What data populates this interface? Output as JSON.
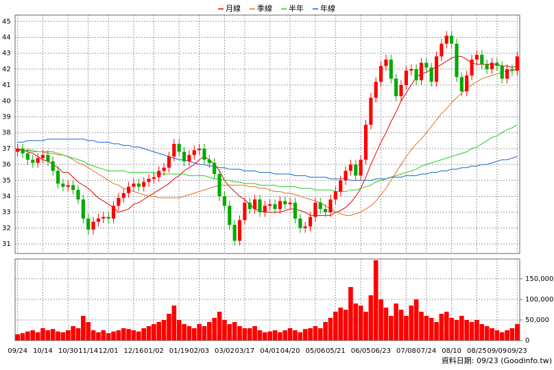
{
  "chart_data": {
    "type": "candlestick",
    "footnote": "資料日期: 09/23  (Goodinfo.tw)",
    "grid": true,
    "legend": "top",
    "up_color": "#ff0000",
    "down_color": "#00aa00",
    "ylim": [
      30.4,
      45.4
    ],
    "yticks": [
      31,
      32,
      33,
      34,
      35,
      36,
      37,
      38,
      39,
      40,
      41,
      42,
      43,
      44,
      45
    ],
    "categories": [
      "09/24",
      null,
      null,
      null,
      null,
      "10/14",
      null,
      null,
      null,
      null,
      "10/30",
      null,
      null,
      null,
      "11/14",
      null,
      null,
      null,
      "12/01",
      null,
      null,
      null,
      null,
      "12/16",
      null,
      null,
      null,
      "01/02",
      null,
      null,
      null,
      null,
      "01/19",
      null,
      null,
      null,
      "02/03",
      null,
      null,
      null,
      null,
      "03/02",
      null,
      null,
      null,
      "03/17",
      null,
      null,
      null,
      null,
      "04/01",
      null,
      null,
      null,
      "04/20",
      null,
      null,
      null,
      null,
      "05/06",
      null,
      null,
      null,
      "05/21",
      null,
      null,
      null,
      null,
      "06/05",
      null,
      null,
      null,
      "06/23",
      null,
      null,
      null,
      null,
      "07/08",
      null,
      null,
      null,
      "07/24",
      null,
      null,
      null,
      null,
      "08/10",
      null,
      null,
      null,
      null,
      "08/25",
      null,
      null,
      null,
      "09/09",
      null,
      null,
      null,
      "09/23"
    ],
    "candles": {
      "open": [
        36.8,
        37.0,
        36.7,
        36.3,
        36.1,
        36.4,
        36.6,
        36.2,
        35.6,
        34.8,
        34.6,
        34.7,
        34.4,
        33.8,
        32.6,
        31.9,
        32.4,
        32.6,
        32.7,
        32.6,
        33.4,
        33.9,
        34.2,
        34.6,
        34.8,
        34.6,
        34.9,
        35.1,
        35.2,
        35.6,
        35.8,
        36.5,
        37.3,
        36.8,
        36.2,
        36.6,
        36.9,
        37.0,
        36.3,
        36.1,
        35.4,
        34.0,
        33.4,
        32.2,
        31.2,
        32.5,
        33.6,
        33.2,
        33.8,
        33.0,
        33.4,
        33.5,
        33.2,
        33.7,
        33.5,
        33.6,
        32.6,
        32.0,
        32.1,
        32.7,
        33.6,
        33.2,
        33.0,
        33.8,
        34.3,
        35.0,
        35.6,
        36.0,
        35.3,
        36.3,
        38.5,
        40.2,
        41.2,
        42.2,
        42.6,
        41.4,
        40.3,
        41.0,
        41.9,
        42.0,
        41.3,
        42.4,
        42.1,
        41.2,
        42.8,
        43.6,
        44.1,
        43.6,
        41.5,
        40.6,
        41.6,
        42.6,
        42.9,
        42.3,
        42.0,
        42.4,
        42.2,
        41.4,
        42.0,
        41.9
      ],
      "high": [
        37.3,
        37.3,
        37.0,
        36.6,
        36.7,
        36.9,
        36.9,
        36.5,
        35.9,
        35.1,
        35.0,
        35.0,
        34.7,
        34.1,
        32.9,
        32.7,
        32.9,
        33.0,
        33.0,
        33.7,
        34.2,
        34.5,
        34.9,
        35.1,
        35.1,
        35.2,
        35.4,
        35.5,
        35.9,
        36.1,
        36.8,
        37.6,
        37.6,
        37.1,
        36.9,
        37.2,
        37.3,
        37.3,
        36.6,
        36.4,
        35.7,
        34.3,
        33.7,
        32.5,
        32.8,
        33.9,
        33.9,
        34.1,
        34.1,
        33.7,
        33.8,
        33.8,
        34.0,
        34.0,
        33.9,
        33.9,
        32.9,
        32.4,
        33.0,
        33.9,
        33.9,
        33.5,
        34.1,
        34.6,
        35.3,
        35.9,
        36.3,
        36.3,
        36.6,
        38.8,
        40.5,
        41.5,
        42.5,
        42.9,
        42.9,
        41.7,
        41.3,
        42.2,
        42.3,
        42.3,
        42.7,
        42.7,
        42.4,
        43.1,
        43.9,
        44.4,
        44.4,
        43.9,
        41.8,
        41.9,
        42.9,
        43.2,
        43.2,
        42.6,
        42.7,
        42.7,
        42.5,
        42.3,
        42.3,
        43.1
      ],
      "low": [
        36.5,
        36.4,
        36.0,
        35.8,
        35.8,
        36.1,
        35.9,
        35.3,
        34.5,
        34.3,
        34.3,
        34.1,
        33.5,
        32.3,
        31.6,
        31.6,
        32.1,
        32.3,
        32.3,
        32.3,
        33.1,
        33.6,
        33.9,
        34.3,
        34.3,
        34.3,
        34.6,
        34.8,
        34.9,
        35.3,
        35.5,
        36.2,
        36.5,
        35.9,
        35.9,
        36.3,
        36.6,
        36.0,
        35.8,
        35.1,
        33.7,
        33.1,
        31.9,
        30.9,
        30.9,
        32.2,
        32.9,
        32.9,
        32.7,
        32.7,
        33.1,
        32.9,
        32.9,
        33.2,
        33.2,
        32.3,
        31.7,
        31.7,
        31.8,
        32.4,
        32.9,
        32.7,
        32.7,
        33.5,
        34.0,
        34.7,
        35.3,
        35.0,
        35.0,
        36.0,
        38.2,
        39.9,
        40.9,
        41.9,
        41.1,
        40.0,
        40.0,
        40.7,
        41.6,
        41.0,
        41.0,
        41.8,
        40.9,
        40.9,
        42.5,
        43.3,
        43.3,
        41.2,
        40.3,
        40.3,
        41.3,
        42.3,
        42.0,
        41.7,
        41.7,
        41.9,
        41.1,
        41.1,
        41.6,
        41.6
      ],
      "close": [
        37.0,
        36.7,
        36.3,
        36.1,
        36.4,
        36.6,
        36.2,
        35.6,
        34.8,
        34.6,
        34.7,
        34.4,
        33.8,
        32.6,
        31.9,
        32.4,
        32.6,
        32.7,
        32.6,
        33.4,
        33.9,
        34.2,
        34.6,
        34.8,
        34.6,
        34.9,
        35.1,
        35.2,
        35.6,
        35.8,
        36.5,
        37.3,
        36.8,
        36.2,
        36.6,
        36.9,
        37.0,
        36.3,
        36.1,
        35.4,
        34.0,
        33.4,
        32.2,
        31.2,
        32.5,
        33.6,
        33.2,
        33.8,
        33.0,
        33.4,
        33.5,
        33.2,
        33.7,
        33.5,
        33.6,
        32.6,
        32.0,
        32.1,
        32.7,
        33.6,
        33.2,
        33.0,
        33.8,
        34.3,
        35.0,
        35.6,
        36.0,
        35.3,
        36.3,
        38.5,
        40.2,
        41.2,
        42.2,
        42.6,
        41.4,
        40.3,
        41.0,
        41.9,
        42.0,
        41.3,
        42.4,
        42.1,
        41.2,
        42.8,
        43.6,
        44.1,
        43.6,
        41.5,
        40.6,
        41.6,
        42.6,
        42.9,
        42.3,
        42.0,
        42.4,
        42.2,
        41.4,
        42.0,
        41.9,
        42.8
      ]
    },
    "series": [
      {
        "name": "月線",
        "color": "#dd0000",
        "values": [
          37.0,
          36.9,
          36.8,
          36.7,
          36.5,
          36.3,
          36.2,
          36.0,
          35.8,
          35.5,
          35.5,
          35.2,
          34.9,
          34.7,
          34.5,
          34.2,
          33.9,
          33.7,
          33.5,
          33.3,
          33.0,
          33.1,
          33.2,
          33.5,
          33.6,
          33.8,
          34.0,
          34.2,
          34.4,
          34.6,
          34.8,
          35.1,
          35.3,
          35.6,
          35.8,
          36.0,
          36.3,
          36.5,
          36.3,
          36.0,
          35.6,
          35.0,
          34.6,
          34.3,
          34.0,
          33.8,
          33.5,
          33.2,
          33.1,
          33.0,
          33.0,
          33.0,
          33.0,
          33.1,
          33.2,
          33.2,
          33.1,
          33.0,
          32.8,
          32.8,
          32.8,
          32.8,
          32.8,
          33.0,
          33.1,
          33.3,
          33.6,
          34.0,
          34.5,
          35.2,
          36.0,
          36.7,
          37.4,
          38.0,
          38.7,
          39.3,
          40.0,
          40.5,
          41.0,
          41.5,
          41.7,
          41.8,
          42.0,
          42.1,
          42.3,
          42.5,
          42.7,
          42.8,
          42.8,
          42.6,
          42.4,
          42.3,
          42.3,
          42.3,
          42.3,
          42.3,
          42.2,
          42.2,
          42.1,
          42.2
        ]
      },
      {
        "name": "季線",
        "color": "#e07020",
        "values": [
          36.9,
          36.9,
          36.9,
          36.8,
          36.8,
          36.8,
          36.7,
          36.7,
          36.6,
          36.6,
          36.5,
          36.3,
          36.1,
          36.0,
          35.8,
          35.6,
          35.4,
          35.2,
          35.0,
          34.8,
          34.7,
          34.5,
          34.4,
          34.3,
          34.2,
          34.1,
          34.0,
          34.0,
          33.9,
          33.9,
          33.9,
          33.9,
          33.9,
          34.0,
          34.1,
          34.2,
          34.3,
          34.4,
          34.5,
          34.6,
          34.7,
          34.7,
          34.7,
          34.7,
          34.7,
          34.7,
          34.6,
          34.6,
          34.5,
          34.5,
          34.4,
          34.3,
          34.3,
          34.2,
          34.2,
          34.1,
          34.0,
          33.9,
          33.8,
          33.7,
          33.6,
          33.4,
          33.2,
          33.0,
          32.9,
          32.8,
          32.8,
          32.9,
          33.0,
          33.2,
          33.4,
          33.7,
          34.1,
          34.5,
          35.0,
          35.5,
          36.0,
          36.5,
          36.9,
          37.3,
          37.6,
          38.0,
          38.4,
          38.8,
          39.2,
          39.5,
          39.9,
          40.2,
          40.5,
          40.8,
          41.0,
          41.2,
          41.4,
          41.5,
          41.6,
          41.7,
          41.8,
          41.9,
          41.9,
          42.0
        ]
      },
      {
        "name": "半年",
        "color": "#22cc22",
        "values": [
          36.9,
          36.9,
          36.9,
          36.9,
          36.8,
          36.8,
          36.8,
          36.8,
          36.7,
          36.6,
          36.5,
          36.4,
          36.3,
          36.2,
          36.0,
          35.9,
          35.8,
          35.7,
          35.6,
          35.6,
          35.6,
          35.6,
          35.5,
          35.5,
          35.5,
          35.5,
          35.5,
          35.5,
          35.4,
          35.4,
          35.4,
          35.4,
          35.4,
          35.4,
          35.3,
          35.3,
          35.3,
          35.3,
          35.2,
          35.1,
          35.1,
          35.0,
          35.0,
          34.9,
          34.9,
          34.8,
          34.8,
          34.8,
          34.7,
          34.7,
          34.7,
          34.7,
          34.6,
          34.6,
          34.6,
          34.6,
          34.5,
          34.5,
          34.5,
          34.4,
          34.4,
          34.4,
          34.4,
          34.3,
          34.3,
          34.3,
          34.4,
          34.4,
          34.5,
          34.6,
          34.7,
          34.9,
          35.0,
          35.1,
          35.2,
          35.3,
          35.4,
          35.5,
          35.6,
          35.7,
          35.9,
          36.0,
          36.1,
          36.2,
          36.3,
          36.4,
          36.5,
          36.6,
          36.7,
          36.8,
          37.0,
          37.1,
          37.3,
          37.5,
          37.7,
          37.8,
          38.0,
          38.2,
          38.3,
          38.5
        ]
      },
      {
        "name": "年線",
        "color": "#1060d0",
        "values": [
          37.4,
          37.4,
          37.5,
          37.5,
          37.5,
          37.5,
          37.6,
          37.6,
          37.6,
          37.6,
          37.6,
          37.6,
          37.6,
          37.6,
          37.5,
          37.5,
          37.4,
          37.4,
          37.4,
          37.3,
          37.3,
          37.2,
          37.2,
          37.1,
          37.1,
          37.0,
          36.9,
          36.8,
          36.7,
          36.6,
          36.5,
          36.4,
          36.3,
          36.3,
          36.2,
          36.1,
          36.0,
          36.0,
          35.9,
          35.9,
          35.8,
          35.8,
          35.7,
          35.7,
          35.7,
          35.6,
          35.6,
          35.6,
          35.5,
          35.5,
          35.5,
          35.4,
          35.4,
          35.4,
          35.4,
          35.3,
          35.3,
          35.3,
          35.2,
          35.2,
          35.2,
          35.2,
          35.1,
          35.1,
          35.1,
          35.1,
          35.0,
          35.0,
          35.0,
          35.0,
          35.0,
          35.1,
          35.1,
          35.1,
          35.2,
          35.2,
          35.2,
          35.3,
          35.3,
          35.3,
          35.4,
          35.4,
          35.5,
          35.5,
          35.6,
          35.6,
          35.7,
          35.7,
          35.8,
          35.8,
          35.9,
          35.9,
          36.0,
          36.0,
          36.1,
          36.2,
          36.3,
          36.3,
          36.4,
          36.5
        ]
      }
    ],
    "volume": {
      "color": "#ff0000",
      "y2lim": [
        0,
        198000
      ],
      "y2ticks": [
        0,
        {
          "value": 50000,
          "label": "50,000"
        },
        {
          "value": 100000,
          "label": "100,000"
        },
        {
          "value": 150000,
          "label": "150,000"
        }
      ],
      "values": [
        15000,
        18000,
        22000,
        25000,
        20000,
        30000,
        25000,
        28000,
        22000,
        20000,
        25000,
        35000,
        30000,
        60000,
        45000,
        25000,
        20000,
        25000,
        18000,
        22000,
        25000,
        30000,
        28000,
        25000,
        22000,
        30000,
        35000,
        40000,
        45000,
        50000,
        65000,
        85000,
        50000,
        40000,
        35000,
        30000,
        40000,
        35000,
        45000,
        55000,
        70000,
        50000,
        40000,
        45000,
        35000,
        30000,
        30000,
        35000,
        25000,
        20000,
        22000,
        25000,
        20000,
        25000,
        30000,
        25000,
        20000,
        28000,
        30000,
        35000,
        30000,
        45000,
        55000,
        70000,
        80000,
        75000,
        130000,
        90000,
        85000,
        70000,
        110000,
        195000,
        100000,
        80000,
        60000,
        90000,
        75000,
        60000,
        85000,
        100000,
        70000,
        60000,
        55000,
        45000,
        65000,
        70000,
        55000,
        50000,
        60000,
        50000,
        45000,
        50000,
        40000,
        35000,
        30000,
        25000,
        20000,
        25000,
        30000,
        40000
      ]
    }
  }
}
